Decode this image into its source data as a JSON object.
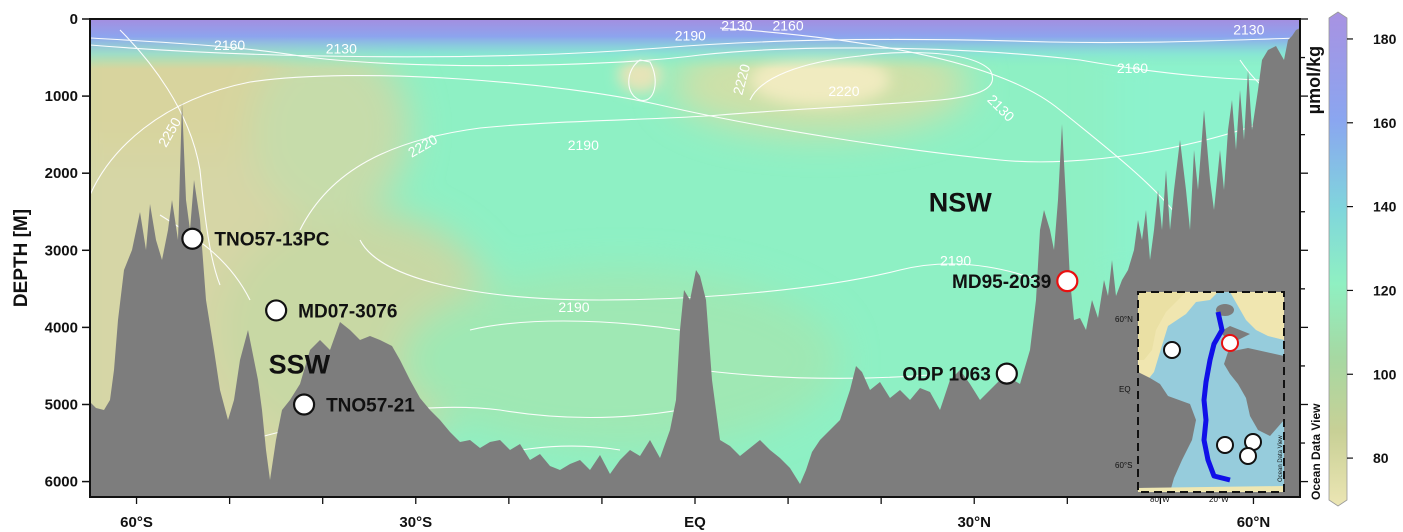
{
  "chart_data": {
    "type": "heatmap",
    "ylabel": "DEPTH [M]",
    "y_ticks": [
      0,
      1000,
      2000,
      3000,
      4000,
      5000,
      6000
    ],
    "ylim": [
      0,
      6200
    ],
    "xlim": [
      -65,
      65
    ],
    "x_ticks": [
      {
        "value": -60,
        "label": "60°S"
      },
      {
        "value": -30,
        "label": "30°S"
      },
      {
        "value": 0,
        "label": "EQ"
      },
      {
        "value": 30,
        "label": "30°N"
      },
      {
        "value": 60,
        "label": "60°N"
      }
    ],
    "colorbar": {
      "unit": "µmol/kg",
      "ticks": [
        80,
        100,
        120,
        140,
        160,
        180
      ],
      "range": [
        70,
        185
      ],
      "colors": [
        "#e8e2b0",
        "#c6cf94",
        "#a3d9a8",
        "#8af0c2",
        "#7ec8e8",
        "#8c9cf0",
        "#a88ee0"
      ]
    },
    "contour_labels": [
      {
        "text": "2130",
        "lat": -38,
        "depth": 450
      },
      {
        "text": "2160",
        "lat": -50,
        "depth": 400
      },
      {
        "text": "2190",
        "lat": -0.5,
        "depth": 280
      },
      {
        "text": "2130",
        "lat": 4.5,
        "depth": 150
      },
      {
        "text": "2160",
        "lat": 10,
        "depth": 150
      },
      {
        "text": "2130",
        "lat": 59.5,
        "depth": 200
      },
      {
        "text": "2220",
        "lat": 5.5,
        "depth": 800,
        "rotate": -75
      },
      {
        "text": "2220",
        "lat": 16,
        "depth": 1000
      },
      {
        "text": "2160",
        "lat": 47,
        "depth": 700
      },
      {
        "text": "2130",
        "lat": 32.5,
        "depth": 1200,
        "rotate": 45
      },
      {
        "text": "2250",
        "lat": -56,
        "depth": 1500,
        "rotate": -60
      },
      {
        "text": "2220",
        "lat": -29,
        "depth": 1700,
        "rotate": -30
      },
      {
        "text": "2190",
        "lat": -12,
        "depth": 1700
      },
      {
        "text": "2190",
        "lat": 28,
        "depth": 3200
      },
      {
        "text": "2190",
        "lat": -13,
        "depth": 3800
      }
    ],
    "water_masses": [
      {
        "label": "NSW",
        "lat": 28.5,
        "depth": 2500
      },
      {
        "label": "SSW",
        "lat": -42.5,
        "depth": 4600
      }
    ],
    "cores": [
      {
        "label": "TNO57-13PC",
        "lat": -54,
        "depth": 2850,
        "color": "#ffffff",
        "label_color": "#111111",
        "label_side": "right"
      },
      {
        "label": "MD07-3076",
        "lat": -45,
        "depth": 3780,
        "color": "#ffffff",
        "label_color": "#111111",
        "label_side": "right"
      },
      {
        "label": "TNO57-21",
        "lat": -42,
        "depth": 5000,
        "color": "#ffffff",
        "label_color": "#111111",
        "label_side": "right"
      },
      {
        "label": "ODP 1063",
        "lat": 33.5,
        "depth": 4600,
        "color": "#ffffff",
        "label_color": "#111111",
        "label_side": "left"
      },
      {
        "label": "MD95-2039",
        "lat": 40,
        "depth": 3400,
        "color": "#ffffff",
        "label_color": "#e81010",
        "label_side": "left",
        "ring": "#e81010"
      }
    ],
    "inset_map": {
      "lat_labels": [
        "60°N",
        "EQ",
        "60°S"
      ],
      "lon_labels": [
        "80°W",
        "20°W"
      ],
      "credit": "Ocean Data View"
    },
    "credit": "Ocean Data View"
  }
}
